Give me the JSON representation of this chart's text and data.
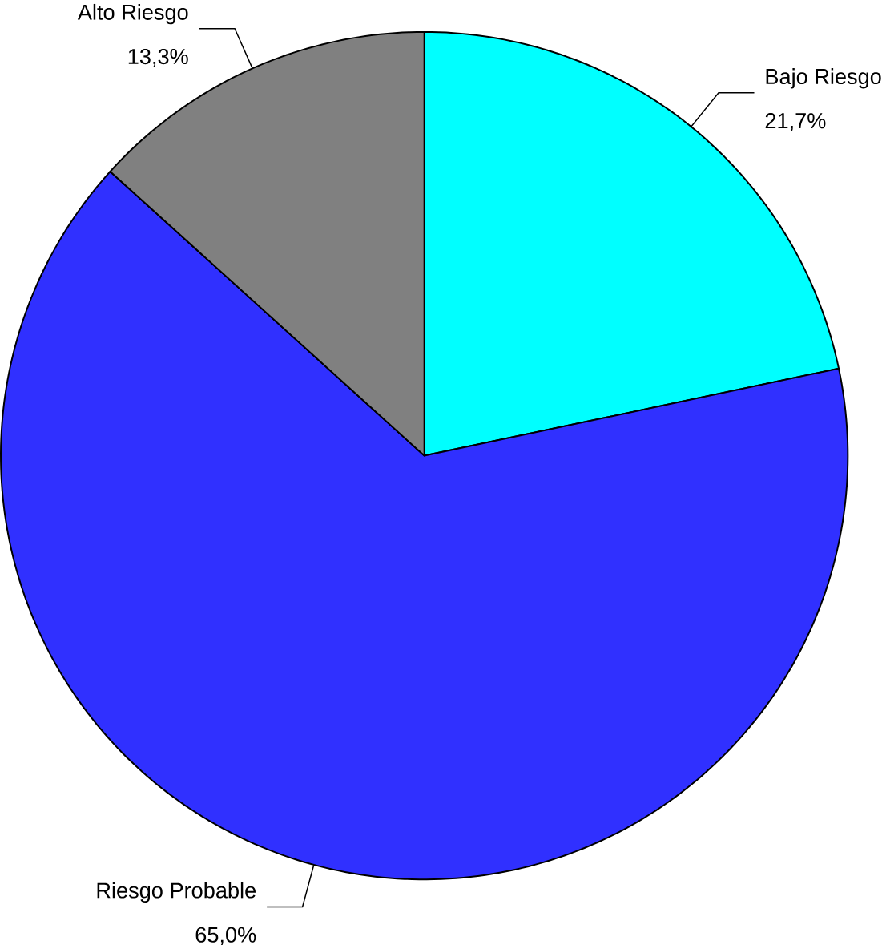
{
  "chart_data": {
    "type": "pie",
    "categories": [
      "Bajo Riesgo",
      "Riesgo Probable",
      "Alto Riesgo"
    ],
    "values": [
      21.7,
      65.0,
      13.3
    ],
    "colors": [
      "#00ffff",
      "#3030ff",
      "#808080"
    ],
    "value_labels": [
      "21,7%",
      "65,0%",
      "13,3%"
    ]
  }
}
